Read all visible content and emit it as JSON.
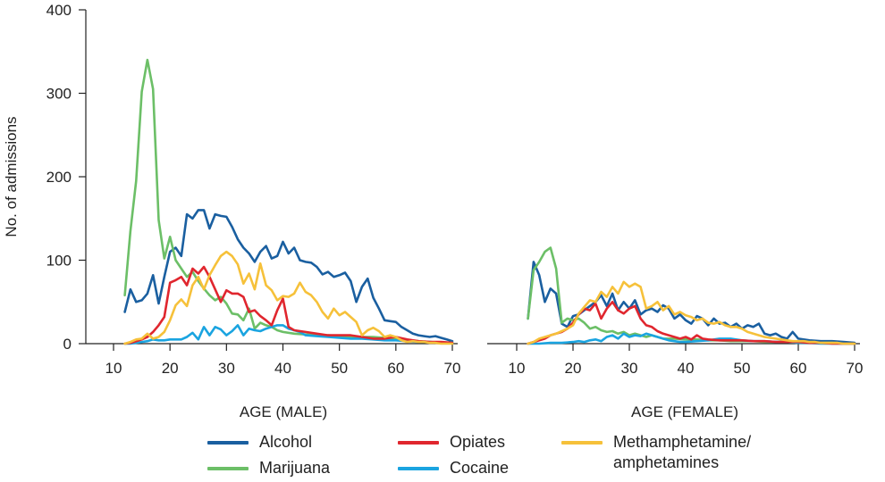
{
  "chart_data": {
    "type": "line",
    "ylabel": "No. of admissions",
    "ylim": [
      0,
      400
    ],
    "yticks": [
      0,
      100,
      200,
      300,
      400
    ],
    "xticks": [
      10,
      20,
      30,
      40,
      50,
      60,
      70
    ],
    "legend_position": "bottom",
    "grid": false,
    "colors": {
      "alcohol": "#1a5fa0",
      "marijuana": "#6cbf67",
      "opiates": "#e0262e",
      "cocaine": "#1aa4e0",
      "meth": "#f6c13a"
    },
    "panels": [
      {
        "xlabel": "AGE (MALE)",
        "xlim": [
          5,
          70
        ],
        "series": [
          {
            "name": "Alcohol",
            "key": "alcohol",
            "x": [
              12,
              13,
              14,
              15,
              16,
              17,
              18,
              19,
              20,
              21,
              22,
              23,
              24,
              25,
              26,
              27,
              28,
              29,
              30,
              31,
              32,
              33,
              34,
              35,
              36,
              37,
              38,
              39,
              40,
              41,
              42,
              43,
              44,
              45,
              46,
              47,
              48,
              49,
              50,
              51,
              52,
              53,
              54,
              55,
              56,
              57,
              58,
              59,
              60,
              61,
              62,
              63,
              64,
              65,
              66,
              67,
              68,
              69,
              70
            ],
            "y": [
              38,
              65,
              50,
              52,
              60,
              82,
              48,
              80,
              110,
              115,
              105,
              155,
              150,
              160,
              160,
              138,
              155,
              153,
              152,
              140,
              125,
              115,
              108,
              98,
              110,
              117,
              102,
              105,
              122,
              108,
              115,
              100,
              98,
              97,
              92,
              83,
              86,
              80,
              82,
              85,
              75,
              50,
              68,
              78,
              55,
              42,
              28,
              27,
              26,
              20,
              16,
              12,
              10,
              9,
              8,
              9,
              7,
              5,
              3
            ]
          },
          {
            "name": "Marijuana",
            "key": "marijuana",
            "x": [
              12,
              13,
              14,
              15,
              16,
              17,
              18,
              19,
              20,
              21,
              22,
              23,
              24,
              25,
              26,
              27,
              28,
              29,
              30,
              31,
              32,
              33,
              34,
              35,
              36,
              37,
              38,
              39,
              40,
              42,
              44,
              46,
              48,
              50,
              52,
              54,
              56,
              58,
              60,
              62,
              64,
              66,
              68,
              70
            ],
            "y": [
              58,
              135,
              195,
              302,
              340,
              305,
              148,
              102,
              128,
              100,
              90,
              80,
              86,
              75,
              66,
              58,
              52,
              56,
              48,
              36,
              35,
              28,
              42,
              18,
              25,
              22,
              20,
              16,
              14,
              12,
              11,
              10,
              10,
              9,
              8,
              8,
              8,
              7,
              6,
              4,
              3,
              2,
              1,
              1
            ]
          },
          {
            "name": "Opiates",
            "key": "opiates",
            "x": [
              12,
              13,
              14,
              15,
              16,
              17,
              18,
              19,
              20,
              21,
              22,
              23,
              24,
              25,
              26,
              27,
              28,
              29,
              30,
              31,
              32,
              33,
              34,
              35,
              36,
              37,
              38,
              39,
              40,
              41,
              42,
              44,
              46,
              48,
              50,
              52,
              54,
              56,
              58,
              60,
              62,
              64,
              66,
              68,
              70
            ],
            "y": [
              0,
              1,
              3,
              5,
              8,
              14,
              22,
              32,
              73,
              76,
              80,
              70,
              90,
              84,
              92,
              80,
              65,
              50,
              64,
              60,
              60,
              56,
              38,
              40,
              33,
              28,
              22,
              40,
              54,
              20,
              16,
              14,
              12,
              10,
              10,
              10,
              8,
              6,
              6,
              8,
              5,
              3,
              2,
              2,
              1
            ]
          },
          {
            "name": "Cocaine",
            "key": "cocaine",
            "x": [
              12,
              13,
              14,
              15,
              16,
              17,
              18,
              19,
              20,
              21,
              22,
              23,
              24,
              25,
              26,
              27,
              28,
              29,
              30,
              31,
              32,
              33,
              34,
              35,
              36,
              37,
              38,
              39,
              40,
              41,
              42,
              43,
              44,
              46,
              48,
              50,
              52,
              54,
              56,
              58,
              60,
              62,
              64,
              66,
              68,
              70
            ],
            "y": [
              0,
              0,
              1,
              2,
              3,
              5,
              4,
              4,
              5,
              5,
              5,
              8,
              13,
              5,
              20,
              10,
              20,
              17,
              10,
              15,
              22,
              10,
              18,
              16,
              15,
              18,
              20,
              22,
              22,
              18,
              16,
              14,
              10,
              9,
              8,
              7,
              6,
              6,
              5,
              4,
              4,
              3,
              2,
              2,
              1,
              1
            ]
          },
          {
            "name": "Methamphetamine/\namphetamines",
            "key": "meth",
            "x": [
              12,
              13,
              14,
              15,
              16,
              17,
              18,
              19,
              20,
              21,
              22,
              23,
              24,
              25,
              26,
              27,
              28,
              29,
              30,
              31,
              32,
              33,
              34,
              35,
              36,
              37,
              38,
              39,
              40,
              41,
              42,
              43,
              44,
              45,
              46,
              47,
              48,
              49,
              50,
              51,
              52,
              53,
              54,
              55,
              56,
              57,
              58,
              59,
              60,
              61,
              62,
              63,
              64,
              65,
              66,
              67,
              68,
              69,
              70
            ],
            "y": [
              0,
              2,
              5,
              6,
              12,
              6,
              8,
              14,
              28,
              46,
              53,
              45,
              70,
              80,
              65,
              82,
              94,
              105,
              110,
              105,
              95,
              72,
              84,
              65,
              96,
              70,
              64,
              52,
              57,
              56,
              60,
              73,
              62,
              58,
              50,
              38,
              30,
              42,
              34,
              38,
              32,
              26,
              10,
              16,
              19,
              15,
              8,
              10,
              8,
              4,
              2,
              3,
              2,
              2,
              1,
              1,
              0,
              0,
              0
            ]
          }
        ]
      },
      {
        "xlabel": "AGE (FEMALE)",
        "xlim": [
          5,
          70
        ],
        "series": [
          {
            "name": "Alcohol",
            "key": "alcohol",
            "x": [
              12,
              13,
              14,
              15,
              16,
              17,
              18,
              19,
              20,
              21,
              22,
              23,
              24,
              25,
              26,
              27,
              28,
              29,
              30,
              31,
              32,
              33,
              34,
              35,
              36,
              37,
              38,
              39,
              40,
              41,
              42,
              43,
              44,
              45,
              46,
              47,
              48,
              49,
              50,
              51,
              52,
              53,
              54,
              55,
              56,
              57,
              58,
              59,
              60,
              62,
              64,
              66,
              68,
              70
            ],
            "y": [
              30,
              98,
              82,
              50,
              66,
              60,
              24,
              20,
              33,
              35,
              40,
              45,
              50,
              58,
              45,
              60,
              40,
              50,
              42,
              52,
              35,
              40,
              42,
              38,
              46,
              42,
              30,
              35,
              28,
              24,
              33,
              30,
              22,
              30,
              24,
              25,
              20,
              24,
              18,
              22,
              20,
              24,
              12,
              10,
              12,
              8,
              6,
              14,
              6,
              4,
              3,
              3,
              2,
              1
            ]
          },
          {
            "name": "Marijuana",
            "key": "marijuana",
            "x": [
              12,
              13,
              14,
              15,
              16,
              17,
              18,
              19,
              20,
              21,
              22,
              23,
              24,
              25,
              26,
              27,
              28,
              29,
              30,
              31,
              32,
              33,
              34,
              35,
              36,
              38,
              40,
              42,
              44,
              46,
              48,
              50,
              52,
              54,
              56,
              58,
              60,
              62,
              64,
              66,
              68,
              70
            ],
            "y": [
              30,
              88,
              98,
              110,
              115,
              90,
              25,
              30,
              28,
              30,
              25,
              18,
              20,
              16,
              14,
              15,
              12,
              14,
              10,
              12,
              10,
              8,
              10,
              8,
              6,
              6,
              5,
              5,
              4,
              4,
              3,
              3,
              3,
              2,
              2,
              2,
              1,
              1,
              1,
              1,
              0,
              0
            ]
          },
          {
            "name": "Opiates",
            "key": "opiates",
            "x": [
              12,
              13,
              14,
              15,
              16,
              17,
              18,
              19,
              20,
              21,
              22,
              23,
              24,
              25,
              26,
              27,
              28,
              29,
              30,
              31,
              32,
              33,
              34,
              35,
              36,
              37,
              38,
              39,
              40,
              41,
              42,
              43,
              44,
              46,
              48,
              50,
              52,
              54,
              56,
              58,
              60,
              62,
              64,
              66,
              68,
              70
            ],
            "y": [
              0,
              2,
              4,
              6,
              10,
              12,
              14,
              18,
              25,
              35,
              42,
              40,
              48,
              30,
              42,
              50,
              40,
              36,
              42,
              45,
              30,
              22,
              20,
              15,
              12,
              10,
              8,
              6,
              8,
              5,
              10,
              6,
              5,
              4,
              4,
              4,
              3,
              3,
              2,
              2,
              2,
              1,
              1,
              0,
              0,
              0
            ]
          },
          {
            "name": "Cocaine",
            "key": "cocaine",
            "x": [
              12,
              14,
              16,
              18,
              20,
              21,
              22,
              23,
              24,
              25,
              26,
              27,
              28,
              29,
              30,
              31,
              32,
              33,
              34,
              35,
              36,
              37,
              38,
              39,
              40,
              42,
              44,
              46,
              48,
              50,
              52,
              54,
              56,
              58,
              60,
              62,
              64,
              66,
              68,
              70
            ],
            "y": [
              0,
              0,
              1,
              1,
              2,
              3,
              2,
              4,
              5,
              3,
              8,
              10,
              6,
              12,
              8,
              10,
              9,
              12,
              10,
              8,
              6,
              4,
              3,
              2,
              2,
              3,
              4,
              6,
              6,
              4,
              3,
              3,
              2,
              2,
              1,
              1,
              0,
              0,
              0,
              0
            ]
          },
          {
            "name": "Methamphetamine/\namphetamines",
            "key": "meth",
            "x": [
              12,
              13,
              14,
              15,
              16,
              17,
              18,
              19,
              20,
              21,
              22,
              23,
              24,
              25,
              26,
              27,
              28,
              29,
              30,
              31,
              32,
              33,
              34,
              35,
              36,
              37,
              38,
              39,
              40,
              41,
              42,
              43,
              44,
              45,
              46,
              47,
              48,
              49,
              50,
              51,
              52,
              53,
              54,
              55,
              56,
              57,
              58,
              59,
              60,
              61,
              62,
              63,
              64,
              65,
              66,
              67,
              68,
              69,
              70
            ],
            "y": [
              0,
              2,
              6,
              8,
              10,
              12,
              15,
              18,
              22,
              36,
              44,
              52,
              50,
              62,
              56,
              68,
              60,
              74,
              68,
              72,
              68,
              42,
              45,
              50,
              40,
              45,
              35,
              38,
              34,
              32,
              28,
              30,
              25,
              24,
              26,
              22,
              20,
              20,
              18,
              14,
              12,
              10,
              8,
              7,
              6,
              5,
              4,
              3,
              3,
              3,
              2,
              2,
              1,
              1,
              1,
              1,
              0,
              0,
              0
            ]
          }
        ]
      }
    ]
  }
}
